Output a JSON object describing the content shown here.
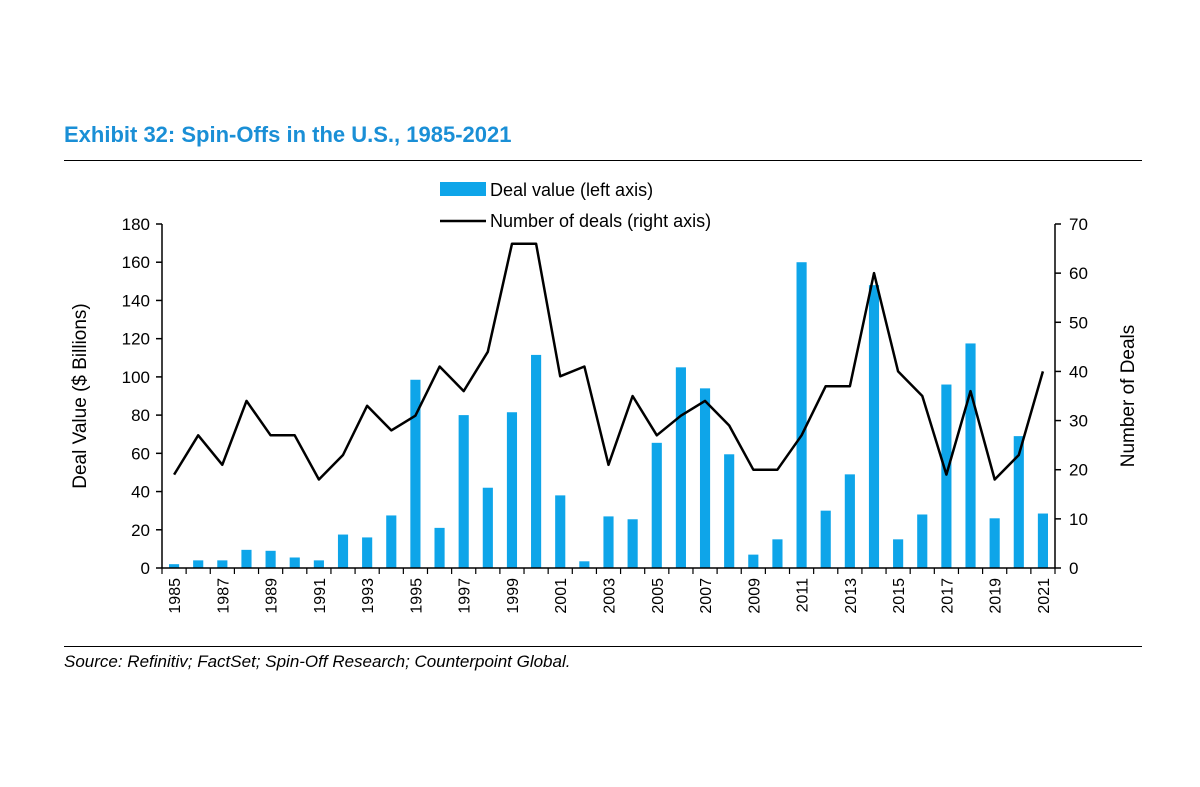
{
  "title": "Exhibit 32: Spin-Offs in the U.S., 1985-2021",
  "source": "Source: Refinitiv; FactSet; Spin-Off Research; Counterpoint Global.",
  "colors": {
    "bar": "#0ea5e9",
    "line": "#000000",
    "title": "#1a8fd6"
  },
  "chart_data": {
    "type": "bar",
    "x": [
      1985,
      1986,
      1987,
      1988,
      1989,
      1990,
      1991,
      1992,
      1993,
      1994,
      1995,
      1996,
      1997,
      1998,
      1999,
      2000,
      2001,
      2002,
      2003,
      2004,
      2005,
      2006,
      2007,
      2008,
      2009,
      2010,
      2011,
      2012,
      2013,
      2014,
      2015,
      2016,
      2017,
      2018,
      2019,
      2020,
      2021
    ],
    "x_tick_labels": [
      "1985",
      "1987",
      "1989",
      "1991",
      "1993",
      "1995",
      "1997",
      "1999",
      "2001",
      "2003",
      "2005",
      "2007",
      "2009",
      "2011",
      "2013",
      "2015",
      "2017",
      "2019",
      "2021"
    ],
    "series": [
      {
        "name": "Deal value (left axis)",
        "type": "bar",
        "axis": "left",
        "values": [
          2,
          4,
          4,
          9.5,
          9,
          5.5,
          4,
          17.5,
          16,
          27.5,
          98.5,
          21,
          80,
          42,
          81.5,
          111.5,
          38,
          3.5,
          27,
          25.5,
          65.5,
          105,
          94,
          59.5,
          7,
          15,
          160,
          30,
          49,
          148,
          15,
          28,
          96,
          117.5,
          26,
          69,
          28.5
        ]
      },
      {
        "name": "Number of deals (right axis)",
        "type": "line",
        "axis": "right",
        "values": [
          19,
          27,
          21,
          34,
          27,
          27,
          18,
          23,
          33,
          28,
          31,
          41,
          36,
          44,
          66,
          66,
          39,
          41,
          21,
          35,
          27,
          31,
          34,
          29,
          20,
          20,
          27,
          37,
          37,
          60,
          40,
          35,
          19,
          36,
          18,
          23,
          40
        ]
      }
    ],
    "ylabel": "Deal Value ($ Billions)",
    "ylim": [
      0,
      180
    ],
    "yticks": [
      0,
      20,
      40,
      60,
      80,
      100,
      120,
      140,
      160,
      180
    ],
    "y2label": "Number of Deals",
    "y2lim": [
      0,
      70
    ],
    "y2ticks": [
      0,
      10,
      20,
      30,
      40,
      50,
      60,
      70
    ],
    "legend_position": "top-center",
    "grid": false
  }
}
